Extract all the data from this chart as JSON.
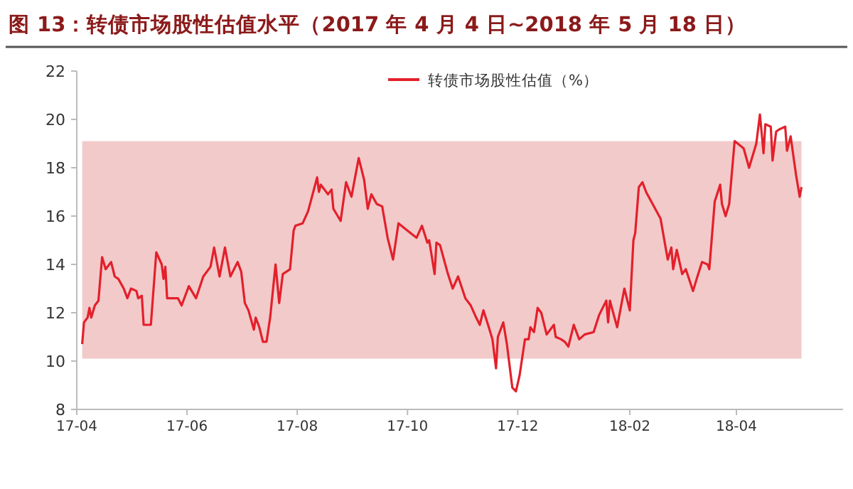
{
  "chart_data": {
    "type": "line",
    "title": "图 13：转债市场股性估值水平（2017 年 4 月 4 日~2018 年 5 月 18 日）",
    "xlim": [
      "2017-04-01",
      "2018-05-30"
    ],
    "xticks": [
      {
        "value": "2017-04-01",
        "label": "17-04"
      },
      {
        "value": "2017-06-01",
        "label": "17-06"
      },
      {
        "value": "2017-08-01",
        "label": "17-08"
      },
      {
        "value": "2017-10-01",
        "label": "17-10"
      },
      {
        "value": "2017-12-01",
        "label": "17-12"
      },
      {
        "value": "2018-02-01",
        "label": "18-02"
      },
      {
        "value": "2018-04-01",
        "label": "18-04"
      }
    ],
    "ylim": [
      8,
      22
    ],
    "yticks": [
      8,
      10,
      12,
      14,
      16,
      18,
      20,
      22
    ],
    "grid": false,
    "legend": "top right",
    "marker": "none",
    "line_style": "solid",
    "bands": [
      {
        "axis": "y",
        "from": 10.1,
        "to": 19.1,
        "color": "#f2caca"
      }
    ],
    "series": [
      {
        "name": "转债市场股性估值（%）",
        "color": "#e3202b",
        "x": [
          "2017-04-04",
          "2017-04-05",
          "2017-04-07",
          "2017-04-08",
          "2017-04-09",
          "2017-04-11",
          "2017-04-13",
          "2017-04-15",
          "2017-04-17",
          "2017-04-20",
          "2017-04-22",
          "2017-04-24",
          "2017-04-27",
          "2017-04-29",
          "2017-05-01",
          "2017-05-04",
          "2017-05-05",
          "2017-05-07",
          "2017-05-08",
          "2017-05-12",
          "2017-05-15",
          "2017-05-18",
          "2017-05-19",
          "2017-05-20",
          "2017-05-21",
          "2017-05-27",
          "2017-05-29",
          "2017-06-02",
          "2017-06-06",
          "2017-06-10",
          "2017-06-14",
          "2017-06-16",
          "2017-06-19",
          "2017-06-22",
          "2017-06-25",
          "2017-06-29",
          "2017-07-01",
          "2017-07-03",
          "2017-07-05",
          "2017-07-08",
          "2017-07-09",
          "2017-07-11",
          "2017-07-13",
          "2017-07-15",
          "2017-07-17",
          "2017-07-20",
          "2017-07-22",
          "2017-07-24",
          "2017-07-28",
          "2017-07-30",
          "2017-07-31",
          "2017-08-04",
          "2017-08-07",
          "2017-08-12",
          "2017-08-13",
          "2017-08-14",
          "2017-08-18",
          "2017-08-20",
          "2017-08-21",
          "2017-08-25",
          "2017-08-28",
          "2017-08-31",
          "2017-09-04",
          "2017-09-07",
          "2017-09-09",
          "2017-09-11",
          "2017-09-14",
          "2017-09-17",
          "2017-09-20",
          "2017-09-23",
          "2017-09-26",
          "2017-10-01",
          "2017-10-06",
          "2017-10-09",
          "2017-10-12",
          "2017-10-13",
          "2017-10-16",
          "2017-10-17",
          "2017-10-19",
          "2017-10-23",
          "2017-10-26",
          "2017-10-29",
          "2017-11-02",
          "2017-11-05",
          "2017-11-08",
          "2017-11-10",
          "2017-11-12",
          "2017-11-15",
          "2017-11-17",
          "2017-11-19",
          "2017-11-20",
          "2017-11-23",
          "2017-11-25",
          "2017-11-28",
          "2017-11-30",
          "2017-12-02",
          "2017-12-05",
          "2017-12-07",
          "2017-12-08",
          "2017-12-10",
          "2017-12-12",
          "2017-12-14",
          "2017-12-17",
          "2017-12-21",
          "2017-12-22",
          "2017-12-25",
          "2017-12-27",
          "2017-12-29",
          "2018-01-01",
          "2018-01-04",
          "2018-01-07",
          "2018-01-12",
          "2018-01-15",
          "2018-01-19",
          "2018-01-20",
          "2018-01-21",
          "2018-01-25",
          "2018-01-29",
          "2018-02-01",
          "2018-02-03",
          "2018-02-04",
          "2018-02-06",
          "2018-02-08",
          "2018-02-10",
          "2018-02-18",
          "2018-02-22",
          "2018-02-24",
          "2018-02-25",
          "2018-02-27",
          "2018-03-02",
          "2018-03-04",
          "2018-03-08",
          "2018-03-10",
          "2018-03-13",
          "2018-03-16",
          "2018-03-17",
          "2018-03-20",
          "2018-03-23",
          "2018-03-24",
          "2018-03-26",
          "2018-03-28",
          "2018-03-31",
          "2018-04-05",
          "2018-04-08",
          "2018-04-12",
          "2018-04-14",
          "2018-04-16",
          "2018-04-17",
          "2018-04-20",
          "2018-04-21",
          "2018-04-23",
          "2018-04-25",
          "2018-04-28",
          "2018-04-29",
          "2018-05-01",
          "2018-05-04",
          "2018-05-06",
          "2018-05-07"
        ],
        "values": [
          10.7,
          11.6,
          11.8,
          12.2,
          11.8,
          12.3,
          12.5,
          14.3,
          13.8,
          14.1,
          13.5,
          13.4,
          13.0,
          12.6,
          13.0,
          12.9,
          12.6,
          12.7,
          11.5,
          11.5,
          14.5,
          14.0,
          13.4,
          13.9,
          12.6,
          12.6,
          12.3,
          13.1,
          12.6,
          13.5,
          13.9,
          14.7,
          13.5,
          14.7,
          13.5,
          14.1,
          13.7,
          12.4,
          12.1,
          11.3,
          11.8,
          11.4,
          10.8,
          10.8,
          11.8,
          14.0,
          12.4,
          13.6,
          13.8,
          15.4,
          15.6,
          15.7,
          16.2,
          17.6,
          17.0,
          17.3,
          16.9,
          17.1,
          16.3,
          15.8,
          17.4,
          16.8,
          18.4,
          17.5,
          16.3,
          16.9,
          16.5,
          16.4,
          15.1,
          14.2,
          15.7,
          15.4,
          15.1,
          15.6,
          14.9,
          15.0,
          13.6,
          14.9,
          14.8,
          13.7,
          13.0,
          13.5,
          12.6,
          12.3,
          11.8,
          11.5,
          12.1,
          11.4,
          10.9,
          9.7,
          11.0,
          11.6,
          10.7,
          8.9,
          8.75,
          9.4,
          10.9,
          10.9,
          11.4,
          11.2,
          12.2,
          12.0,
          11.1,
          11.5,
          11.0,
          10.9,
          10.8,
          10.6,
          11.5,
          10.9,
          11.1,
          11.2,
          11.9,
          12.5,
          11.6,
          12.5,
          11.4,
          13.0,
          12.1,
          15.0,
          15.3,
          17.2,
          17.4,
          17.0,
          15.9,
          14.2,
          14.7,
          13.8,
          14.6,
          13.6,
          13.8,
          12.9,
          13.4,
          14.1,
          14.0,
          13.8,
          16.6,
          17.3,
          16.5,
          16.0,
          16.5,
          19.1,
          18.8,
          18.0,
          19.0,
          20.2,
          18.6,
          19.8,
          19.7,
          18.3,
          19.5,
          19.6,
          19.7,
          18.7,
          19.3,
          17.7,
          16.8,
          17.2
        ]
      }
    ]
  }
}
